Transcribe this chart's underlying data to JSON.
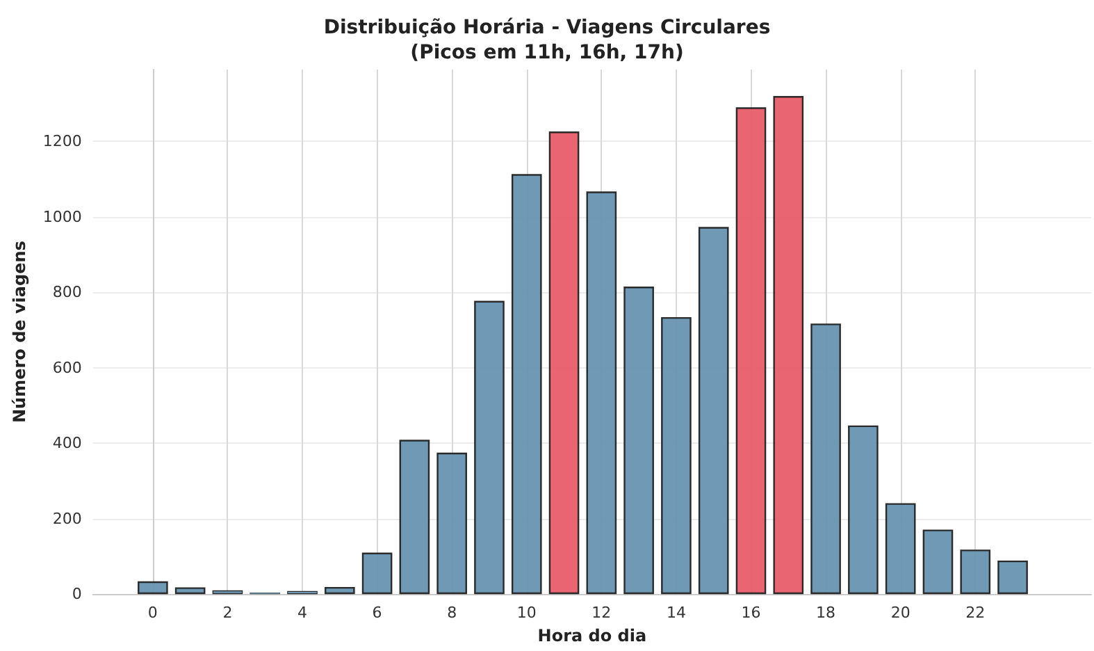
{
  "chart_data": {
    "type": "bar",
    "title": "Distribuição Horária - Viagens Circulares\n(Picos em 11h, 16h, 17h)",
    "xlabel": "Hora do dia",
    "ylabel": "Número de viagens",
    "x": [
      0,
      1,
      2,
      3,
      4,
      5,
      6,
      7,
      8,
      9,
      10,
      11,
      12,
      13,
      14,
      15,
      16,
      17,
      18,
      19,
      20,
      21,
      22,
      23
    ],
    "values": [
      34,
      18,
      10,
      4,
      8,
      19,
      110,
      409,
      375,
      777,
      1113,
      1226,
      1067,
      815,
      734,
      973,
      1290,
      1320,
      717,
      447,
      241,
      171,
      118,
      89
    ],
    "colors": [
      "#6794b1",
      "#6794b1",
      "#6794b1",
      "#6794b1",
      "#6794b1",
      "#6794b1",
      "#6794b1",
      "#6794b1",
      "#6794b1",
      "#6794b1",
      "#6794b1",
      "#e85d6a",
      "#6794b1",
      "#6794b1",
      "#6794b1",
      "#6794b1",
      "#e85d6a",
      "#e85d6a",
      "#6794b1",
      "#6794b1",
      "#6794b1",
      "#6794b1",
      "#6794b1",
      "#6794b1"
    ],
    "xlim": [
      -1.6,
      25.1
    ],
    "xticks": [
      0,
      2,
      4,
      6,
      8,
      10,
      12,
      14,
      16,
      18,
      20,
      22
    ],
    "ylim": [
      0,
      1390
    ],
    "yticks": [
      0,
      200,
      400,
      600,
      800,
      1000,
      1200
    ],
    "grid": true
  }
}
